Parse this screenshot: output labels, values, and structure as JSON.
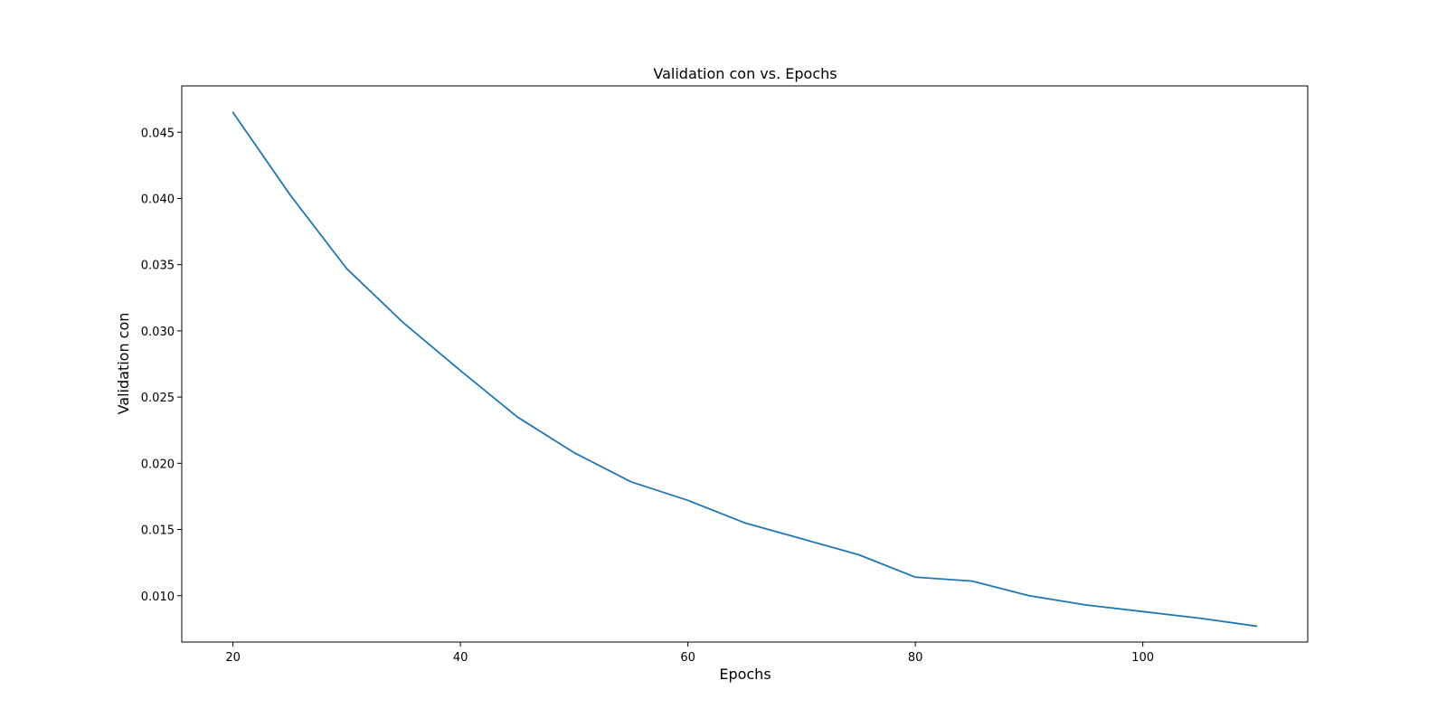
{
  "chart_data": {
    "type": "line",
    "title": "Validation con vs. Epochs",
    "xlabel": "Epochs",
    "ylabel": "Validation con",
    "xlim": [
      15.5,
      114.5
    ],
    "ylim": [
      0.0065,
      0.0485
    ],
    "xticks": [
      20,
      40,
      60,
      80,
      100
    ],
    "xtick_labels": [
      "20",
      "40",
      "60",
      "80",
      "100"
    ],
    "yticks": [
      0.01,
      0.015,
      0.02,
      0.025,
      0.03,
      0.035,
      0.04,
      0.045
    ],
    "ytick_labels": [
      "0.010",
      "0.015",
      "0.020",
      "0.025",
      "0.030",
      "0.035",
      "0.040",
      "0.045"
    ],
    "grid": false,
    "series": [
      {
        "color": "#1f77b4",
        "x": [
          20,
          25,
          30,
          35,
          40,
          45,
          50,
          55,
          60,
          65,
          70,
          75,
          80,
          85,
          90,
          95,
          100,
          105,
          110
        ],
        "y": [
          0.0465,
          0.0403,
          0.0347,
          0.0306,
          0.027,
          0.0235,
          0.0208,
          0.0186,
          0.0172,
          0.0155,
          0.0143,
          0.0131,
          0.0114,
          0.0111,
          0.01,
          0.0093,
          0.0088,
          0.0083,
          0.0077
        ]
      }
    ]
  }
}
